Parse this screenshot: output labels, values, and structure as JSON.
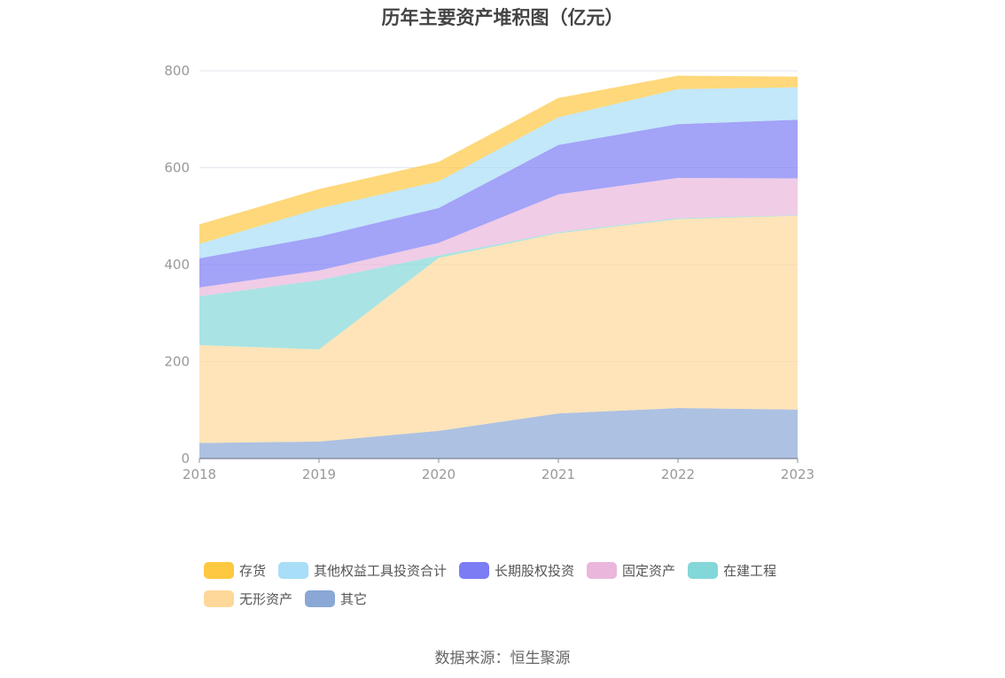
{
  "chart_data": {
    "type": "area",
    "title": "历年主要资产堆积图（亿元）",
    "x": [
      "2018",
      "2019",
      "2020",
      "2021",
      "2022",
      "2023"
    ],
    "ylim": [
      0,
      800
    ],
    "yticks": [
      0,
      200,
      400,
      600,
      800
    ],
    "stacked": true,
    "grid": true,
    "legend_position": "bottom",
    "series": [
      {
        "name": "其它",
        "color": "#8aa7d6",
        "values": [
          32,
          35,
          57,
          93,
          104,
          101
        ]
      },
      {
        "name": "无形资产",
        "color": "#fdd89a",
        "values": [
          202,
          190,
          357,
          372,
          390,
          400
        ]
      },
      {
        "name": "在建工程",
        "color": "#84d7d9",
        "values": [
          101,
          143,
          5,
          2,
          2,
          1
        ]
      },
      {
        "name": "固定资产",
        "color": "#eab6db",
        "values": [
          18,
          20,
          26,
          78,
          83,
          76
        ]
      },
      {
        "name": "长期股权投资",
        "color": "#7c7cf5",
        "values": [
          60,
          70,
          72,
          102,
          111,
          121
        ]
      },
      {
        "name": "其他权益工具投资合计",
        "color": "#a8def7",
        "values": [
          30,
          58,
          55,
          57,
          72,
          67
        ]
      },
      {
        "name": "存货",
        "color": "#fec841",
        "values": [
          40,
          40,
          40,
          40,
          28,
          22
        ]
      }
    ]
  },
  "legend": {
    "items": [
      {
        "label": "存货",
        "color": "#fec841"
      },
      {
        "label": "其他权益工具投资合计",
        "color": "#a8def7"
      },
      {
        "label": "长期股权投资",
        "color": "#7c7cf5"
      },
      {
        "label": "固定资产",
        "color": "#eab6db"
      },
      {
        "label": "在建工程",
        "color": "#84d7d9"
      },
      {
        "label": "无形资产",
        "color": "#fdd89a"
      },
      {
        "label": "其它",
        "color": "#8aa7d6"
      }
    ]
  },
  "source": "数据来源：恒生聚源"
}
